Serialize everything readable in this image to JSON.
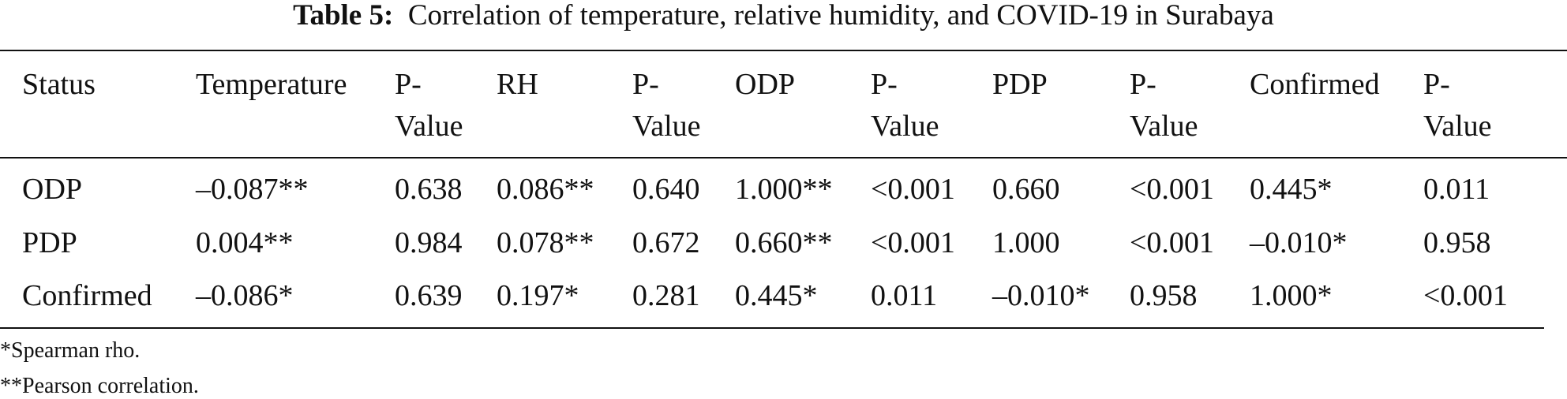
{
  "title": {
    "label": "Table 5:",
    "text": "Correlation of temperature, relative humidity, and COVID-19 in Surabaya"
  },
  "table": {
    "headers": [
      "Status",
      "Temperature",
      "P-Value",
      "RH",
      "P-Value",
      "ODP",
      "P-Value",
      "PDP",
      "P-Value",
      "Confirmed",
      "P-Value"
    ],
    "rows": [
      [
        "ODP",
        "–0.087**",
        "0.638",
        "0.086**",
        "0.640",
        "1.000**",
        "<0.001",
        "0.660",
        "<0.001",
        "0.445*",
        "0.011"
      ],
      [
        "PDP",
        "0.004**",
        "0.984",
        "0.078**",
        "0.672",
        "0.660**",
        "<0.001",
        "1.000",
        "<0.001",
        "–0.010*",
        "0.958"
      ],
      [
        "Confirmed",
        "–0.086*",
        "0.639",
        "0.197*",
        "0.281",
        "0.445*",
        "0.011",
        "–0.010*",
        "0.958",
        "1.000*",
        "<0.001"
      ]
    ]
  },
  "footnotes": [
    "*Spearman rho.",
    "**Pearson correlation."
  ]
}
